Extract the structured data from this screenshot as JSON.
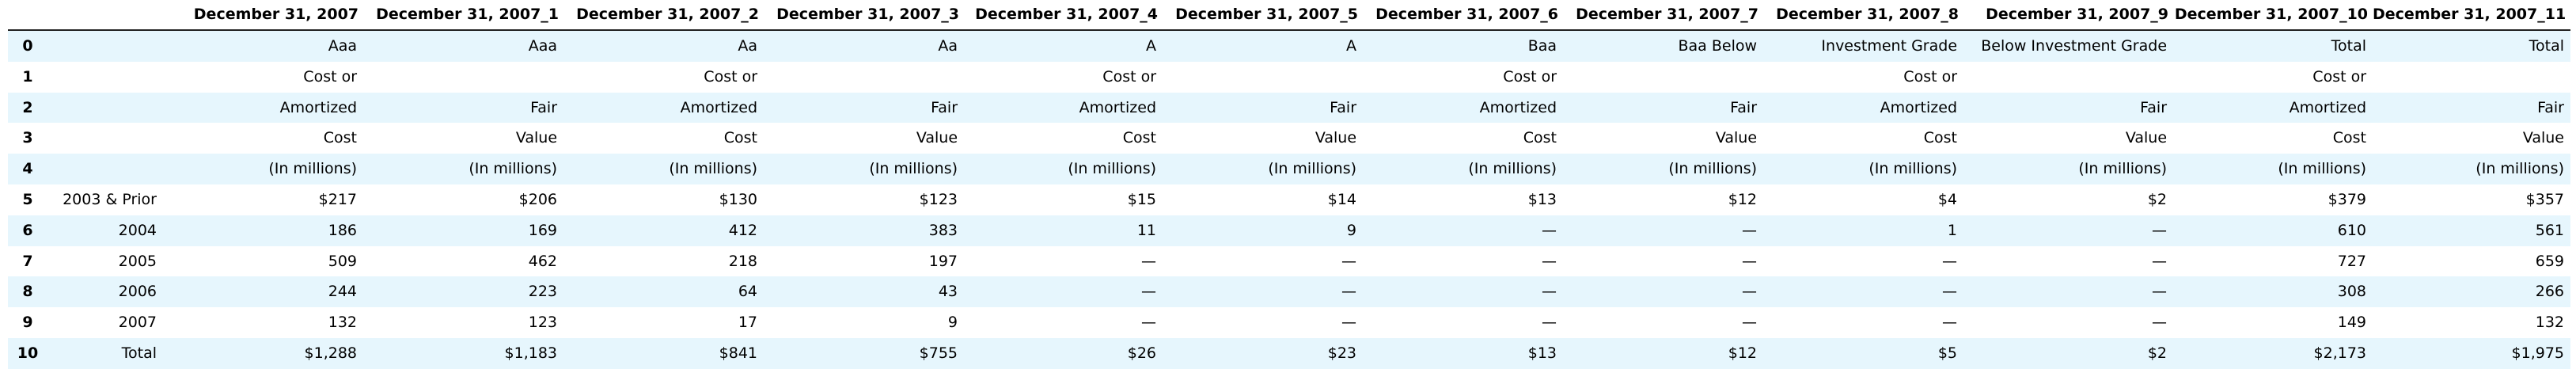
{
  "table": {
    "index_header": "",
    "columns": [
      "December 31, 2007",
      "December 31, 2007_1",
      "December 31, 2007_2",
      "December 31, 2007_3",
      "December 31, 2007_4",
      "December 31, 2007_5",
      "December 31, 2007_6",
      "December 31, 2007_7",
      "December 31, 2007_8",
      "December 31, 2007_9",
      "December 31, 2007_10",
      "December 31, 2007_11"
    ],
    "rows": [
      {
        "index": "0",
        "cells": [
          "Aaa",
          "Aaa",
          "Aa",
          "Aa",
          "A",
          "A",
          "Baa",
          "Baa  Below",
          "Investment Grade",
          "Below   Investment Grade",
          "Total",
          "Total"
        ]
      },
      {
        "index": "1",
        "cells": [
          "Cost or",
          "",
          "Cost or",
          "",
          "Cost or",
          "",
          "Cost or",
          "",
          "Cost or",
          "",
          "Cost or",
          ""
        ]
      },
      {
        "index": "2",
        "cells": [
          "Amortized",
          "Fair",
          "Amortized",
          "Fair",
          "Amortized",
          "Fair",
          "Amortized",
          "Fair",
          "Amortized",
          "Fair",
          "Amortized",
          "Fair"
        ]
      },
      {
        "index": "3",
        "cells": [
          "Cost",
          "Value",
          "Cost",
          "Value",
          "Cost",
          "Value",
          "Cost",
          "Value",
          "Cost",
          "Value",
          "Cost",
          "Value"
        ]
      },
      {
        "index": "4",
        "cells": [
          "(In millions)",
          "(In millions)",
          "(In millions)",
          "(In millions)",
          "(In millions)",
          "(In millions)",
          "(In millions)",
          "(In millions)",
          "(In millions)",
          "(In millions)",
          "(In millions)",
          "(In millions)"
        ]
      },
      {
        "index": "5",
        "cells": [
          "2003 & Prior",
          "$217",
          "$206",
          "$130",
          "$123",
          "$15",
          "$14",
          "$13",
          "$12",
          "$4",
          "$2",
          "$379",
          "$357"
        ]
      },
      {
        "index": "6",
        "cells": [
          "2004",
          "186",
          "169",
          "412",
          "383",
          "11",
          "9",
          "—",
          "—",
          "1",
          "—",
          "610",
          "561"
        ]
      },
      {
        "index": "7",
        "cells": [
          "2005",
          "509",
          "462",
          "218",
          "197",
          "—",
          "—",
          "—",
          "—",
          "—",
          "—",
          "727",
          "659"
        ]
      },
      {
        "index": "8",
        "cells": [
          "2006",
          "244",
          "223",
          "64",
          "43",
          "—",
          "—",
          "—",
          "—",
          "—",
          "—",
          "308",
          "266"
        ]
      },
      {
        "index": "9",
        "cells": [
          "2007",
          "132",
          "123",
          "17",
          "9",
          "—",
          "—",
          "—",
          "—",
          "—",
          "—",
          "149",
          "132"
        ]
      },
      {
        "index": "10",
        "cells": [
          "Total",
          "$1,288",
          "$1,183",
          "$841",
          "$755",
          "$26",
          "$23",
          "$13",
          "$12",
          "$5",
          "$2",
          "$2,173",
          "$1,975"
        ]
      }
    ]
  }
}
